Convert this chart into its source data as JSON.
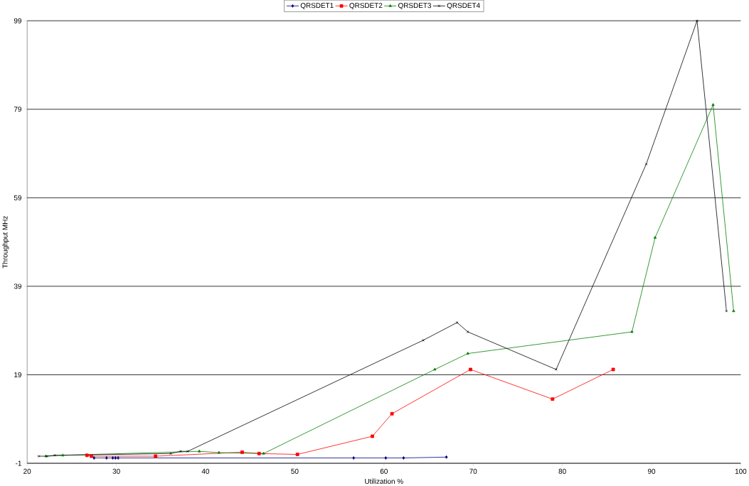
{
  "chart_data": {
    "type": "line",
    "xlabel": "Utilization %",
    "ylabel": "Throughput MHz",
    "xlim": [
      20,
      100
    ],
    "xticks": [
      20,
      30,
      40,
      50,
      60,
      70,
      80,
      90,
      100
    ],
    "ylim": [
      -1,
      99
    ],
    "yticks": [
      -1,
      19,
      39,
      59,
      79,
      99
    ],
    "grid": "y",
    "legend": "top",
    "series": [
      {
        "name": "QRSDET1",
        "color": "#000080",
        "marker": "diamond",
        "x": [
          27.5,
          28.9,
          29.6,
          29.9,
          30.2,
          56.6,
          60.2,
          62.2,
          67.0
        ],
        "values": [
          0.2,
          0.2,
          0.2,
          0.2,
          0.2,
          0.2,
          0.2,
          0.2,
          0.4
        ]
      },
      {
        "name": "QRSDET2",
        "color": "#ff0000",
        "marker": "square",
        "x": [
          26.7,
          27.2,
          34.4,
          44.1,
          46.0,
          50.3,
          58.7,
          60.9,
          69.7,
          78.9,
          85.7
        ],
        "values": [
          0.8,
          0.6,
          0.6,
          1.5,
          1.2,
          1.0,
          5.1,
          10.2,
          20.2,
          13.5,
          20.2
        ]
      },
      {
        "name": "QRSDET3",
        "color": "#008000",
        "marker": "triangle",
        "x": [
          22.1,
          24.0,
          39.3,
          41.5,
          46.5,
          65.7,
          69.4,
          87.8,
          90.4,
          96.9,
          99.2
        ],
        "values": [
          0.6,
          0.8,
          1.7,
          1.4,
          1.2,
          20.2,
          23.8,
          28.7,
          50.0,
          80.0,
          33.4
        ]
      },
      {
        "name": "QRSDET4",
        "color": "#000000",
        "marker": "cross",
        "x": [
          21.3,
          22.2,
          23.1,
          36.1,
          37.2,
          38.0,
          64.4,
          68.2,
          69.4,
          79.3,
          89.4,
          95.1,
          98.4
        ],
        "values": [
          0.6,
          0.6,
          0.8,
          1.2,
          1.7,
          1.7,
          26.8,
          30.8,
          28.7,
          20.2,
          66.6,
          99.0,
          33.4
        ]
      }
    ]
  }
}
